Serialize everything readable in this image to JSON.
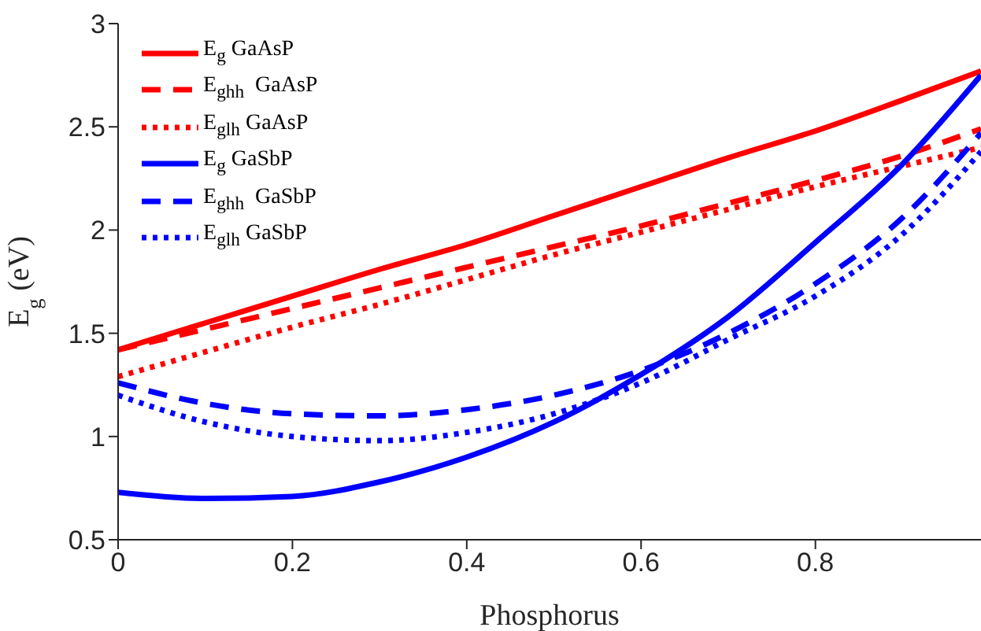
{
  "chart_data": {
    "type": "line",
    "xlabel": "Phosphorus",
    "ylabel": "E$_{g}$ (eV)",
    "x": [
      0,
      0.1,
      0.2,
      0.3,
      0.4,
      0.5,
      0.6,
      0.7,
      0.8,
      0.9,
      0.99
    ],
    "xlim": [
      0,
      0.99
    ],
    "xticks": [
      0,
      0.2,
      0.4,
      0.6,
      0.8
    ],
    "ylim": [
      0.5,
      3
    ],
    "yticks": [
      0.5,
      1,
      1.5,
      2,
      2.5,
      3
    ],
    "grid": false,
    "legend": "top left",
    "marker": "none",
    "series": [
      {
        "name": "E$_{g}$ GaAsP",
        "color": "#ff0000",
        "line_style": "solid",
        "values": [
          1.42,
          1.55,
          1.68,
          1.81,
          1.93,
          2.07,
          2.21,
          2.35,
          2.48,
          2.63,
          2.77
        ]
      },
      {
        "name": "E$_{ghh}$  GaAsP",
        "color": "#ff0000",
        "line_style": "dashed",
        "values": [
          1.42,
          1.52,
          1.62,
          1.72,
          1.82,
          1.92,
          2.02,
          2.13,
          2.24,
          2.36,
          2.49
        ]
      },
      {
        "name": "E$_{glh}$ GaAsP",
        "color": "#ff0000",
        "line_style": "dotted",
        "values": [
          1.29,
          1.41,
          1.53,
          1.64,
          1.76,
          1.88,
          1.99,
          2.1,
          2.21,
          2.31,
          2.4
        ]
      },
      {
        "name": "E$_{g}$ GaSbP",
        "color": "#0000ff",
        "line_style": "solid",
        "values": [
          0.73,
          0.7,
          0.71,
          0.78,
          0.9,
          1.07,
          1.3,
          1.58,
          1.94,
          2.32,
          2.75
        ]
      },
      {
        "name": "E$_{ghh}$  GaSbP",
        "color": "#0000ff",
        "line_style": "dashed",
        "values": [
          1.26,
          1.16,
          1.11,
          1.1,
          1.13,
          1.2,
          1.32,
          1.5,
          1.74,
          2.06,
          2.47
        ]
      },
      {
        "name": "E$_{glh}$ GaSbP",
        "color": "#0000ff",
        "line_style": "dotted",
        "values": [
          1.2,
          1.07,
          1.0,
          0.98,
          1.02,
          1.11,
          1.26,
          1.47,
          1.68,
          1.98,
          2.38
        ]
      }
    ]
  }
}
